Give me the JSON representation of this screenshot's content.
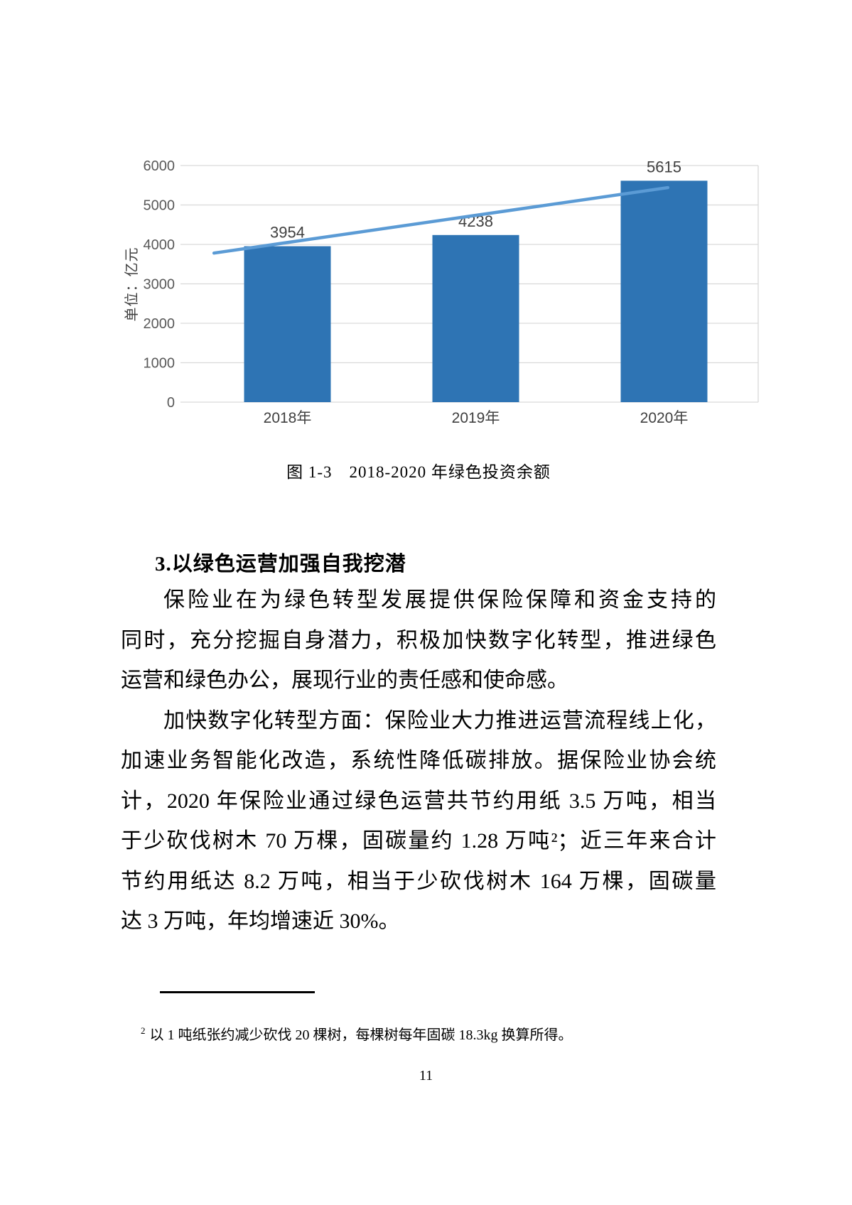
{
  "page": {
    "number": "11"
  },
  "chart_data": {
    "type": "bar",
    "title": "",
    "caption": "图 1-3　2018-2020 年绿色投资余额",
    "categories": [
      "2018年",
      "2019年",
      "2020年"
    ],
    "values": [
      3954,
      4238,
      5615
    ],
    "data_labels": [
      "3954",
      "4238",
      "5615"
    ],
    "xlabel": "",
    "ylabel": "单位：亿元",
    "ylim": [
      0,
      6000
    ],
    "yticks": [
      0,
      1000,
      2000,
      3000,
      4000,
      5000,
      6000
    ],
    "grid": true,
    "legend": "none",
    "bar_color": "#2E74B4",
    "gridline_color": "#D9D9D9",
    "tick_label_color": "#595959",
    "data_label_color": "#404040",
    "trendline": {
      "color": "#5B9BD5",
      "points": [
        {
          "category_offset": -0.39,
          "value": 3780
        },
        {
          "category_offset": 2.02,
          "value": 5440
        }
      ]
    }
  },
  "content": {
    "heading": "3.以绿色运营加强自我挖潜",
    "lines": [
      "保险业在为绿色转型发展提供保险保障和资金支持的",
      "同时，充分挖掘自身潜力，积极加快数字化转型，推进绿色",
      "运营和绿色办公，展现行业的责任感和使命感。",
      "加快数字化转型方面：保险业大力推进运营流程线上化，",
      "加速业务智能化改造，系统性降低碳排放。据保险业协会统",
      "计，2020 年保险业通过绿色运营共节约用纸 3.5 万吨，相当",
      "于少砍伐树木 70 万棵，固碳量约 1.28 万吨²；近三年来合计",
      "节约用纸达 8.2 万吨，相当于少砍伐树木 164 万棵，固碳量",
      "达 3 万吨，年均增速近 30%。"
    ],
    "footnote": {
      "marker": "2",
      "text": "以 1 吨纸张约减少砍伐 20 棵树，每棵树每年固碳 18.3kg 换算所得。"
    }
  }
}
